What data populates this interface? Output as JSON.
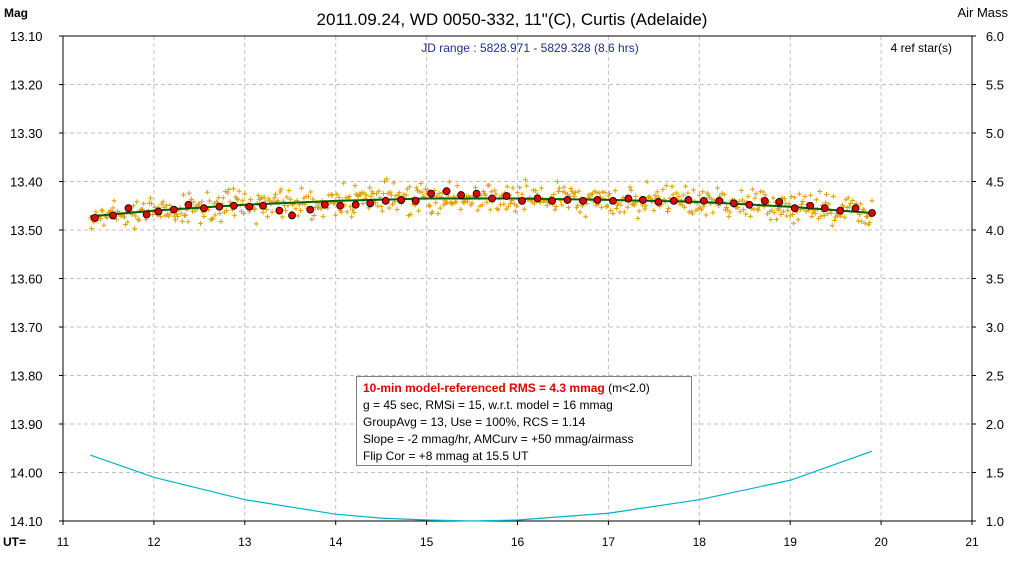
{
  "colors": {
    "title": "#000000",
    "subtitle": "#1f2f8f",
    "grid": "#c0c0c0",
    "raw_points": "#e0a000",
    "group_points": "#e00000",
    "model_line": "#006000",
    "airmass_curve": "#00b4c8",
    "rms_text": "#e00000"
  },
  "chart_data": {
    "type": "scatter",
    "title": "2011.09.24, WD 0050-332, 11\"(C), Curtis (Adelaide)",
    "subtitle": "JD range : 5828.971 - 5829.328 (8.6 hrs)",
    "corner_note": "4 ref star(s)",
    "ylabel": "Mag",
    "y2label": "Air Mass",
    "xlabel": "UT=",
    "xlim": [
      11,
      21
    ],
    "ylim": [
      13.1,
      14.1
    ],
    "y_inverted": true,
    "y2lim": [
      6.0,
      1.0
    ],
    "grid": true,
    "xticks": [
      "11",
      "12",
      "13",
      "14",
      "15",
      "16",
      "17",
      "18",
      "19",
      "20",
      "21"
    ],
    "yticks": [
      "13.10",
      "13.20",
      "13.30",
      "13.40",
      "13.50",
      "13.60",
      "13.70",
      "13.80",
      "13.90",
      "14.00",
      "14.10"
    ],
    "y2ticks": [
      "6.0",
      "5.5",
      "5.0",
      "4.5",
      "4.0",
      "3.5",
      "3.0",
      "2.5",
      "2.0",
      "1.5",
      "1.0"
    ],
    "series": [
      {
        "kind": "group_average",
        "x": [
          11.35,
          11.55,
          11.72,
          11.92,
          12.05,
          12.22,
          12.38,
          12.55,
          12.72,
          12.88,
          13.05,
          13.2,
          13.38,
          13.52,
          13.72,
          13.88,
          14.05,
          14.22,
          14.38,
          14.55,
          14.72,
          14.88,
          15.05,
          15.22,
          15.38,
          15.55,
          15.72,
          15.88,
          16.05,
          16.22,
          16.38,
          16.55,
          16.72,
          16.88,
          17.05,
          17.22,
          17.38,
          17.55,
          17.72,
          17.88,
          18.05,
          18.22,
          18.38,
          18.55,
          18.72,
          18.88,
          19.05,
          19.22,
          19.38,
          19.55,
          19.72,
          19.9
        ],
        "y": [
          13.475,
          13.47,
          13.455,
          13.468,
          13.462,
          13.458,
          13.448,
          13.455,
          13.452,
          13.45,
          13.452,
          13.45,
          13.46,
          13.47,
          13.458,
          13.448,
          13.45,
          13.448,
          13.445,
          13.44,
          13.438,
          13.44,
          13.425,
          13.42,
          13.428,
          13.425,
          13.435,
          13.43,
          13.44,
          13.435,
          13.44,
          13.438,
          13.44,
          13.438,
          13.44,
          13.435,
          13.438,
          13.442,
          13.44,
          13.438,
          13.44,
          13.44,
          13.445,
          13.448,
          13.44,
          13.442,
          13.455,
          13.45,
          13.455,
          13.46,
          13.455,
          13.465
        ]
      },
      {
        "kind": "model",
        "x": [
          11.3,
          12.0,
          13.0,
          14.0,
          15.0,
          16.0,
          17.0,
          18.0,
          19.0,
          19.9
        ],
        "y": [
          13.472,
          13.46,
          13.448,
          13.44,
          13.435,
          13.435,
          13.438,
          13.442,
          13.452,
          13.465
        ]
      },
      {
        "kind": "air_mass",
        "axis": "right",
        "x": [
          11.3,
          12.0,
          13.0,
          14.0,
          14.5,
          15.0,
          15.5,
          16.0,
          17.0,
          18.0,
          19.0,
          19.9
        ],
        "y": [
          1.68,
          1.45,
          1.22,
          1.07,
          1.03,
          1.01,
          1.0,
          1.01,
          1.08,
          1.22,
          1.42,
          1.72
        ]
      }
    ]
  },
  "info": {
    "line1_rms": "10-min model-referenced RMS = 4.3 mmag",
    "line1_suffix": " (m<2.0)",
    "line2": "g = 45 sec, RMSi = 15, w.r.t. model = 16 mmag",
    "line3": "GroupAvg = 13, Use = 100%, RCS = 1.14",
    "line4": "Slope = -2 mmag/hr, AMCurv = +50 mmag/airmass",
    "line5": "Flip Cor = +8 mmag at 15.5 UT"
  }
}
